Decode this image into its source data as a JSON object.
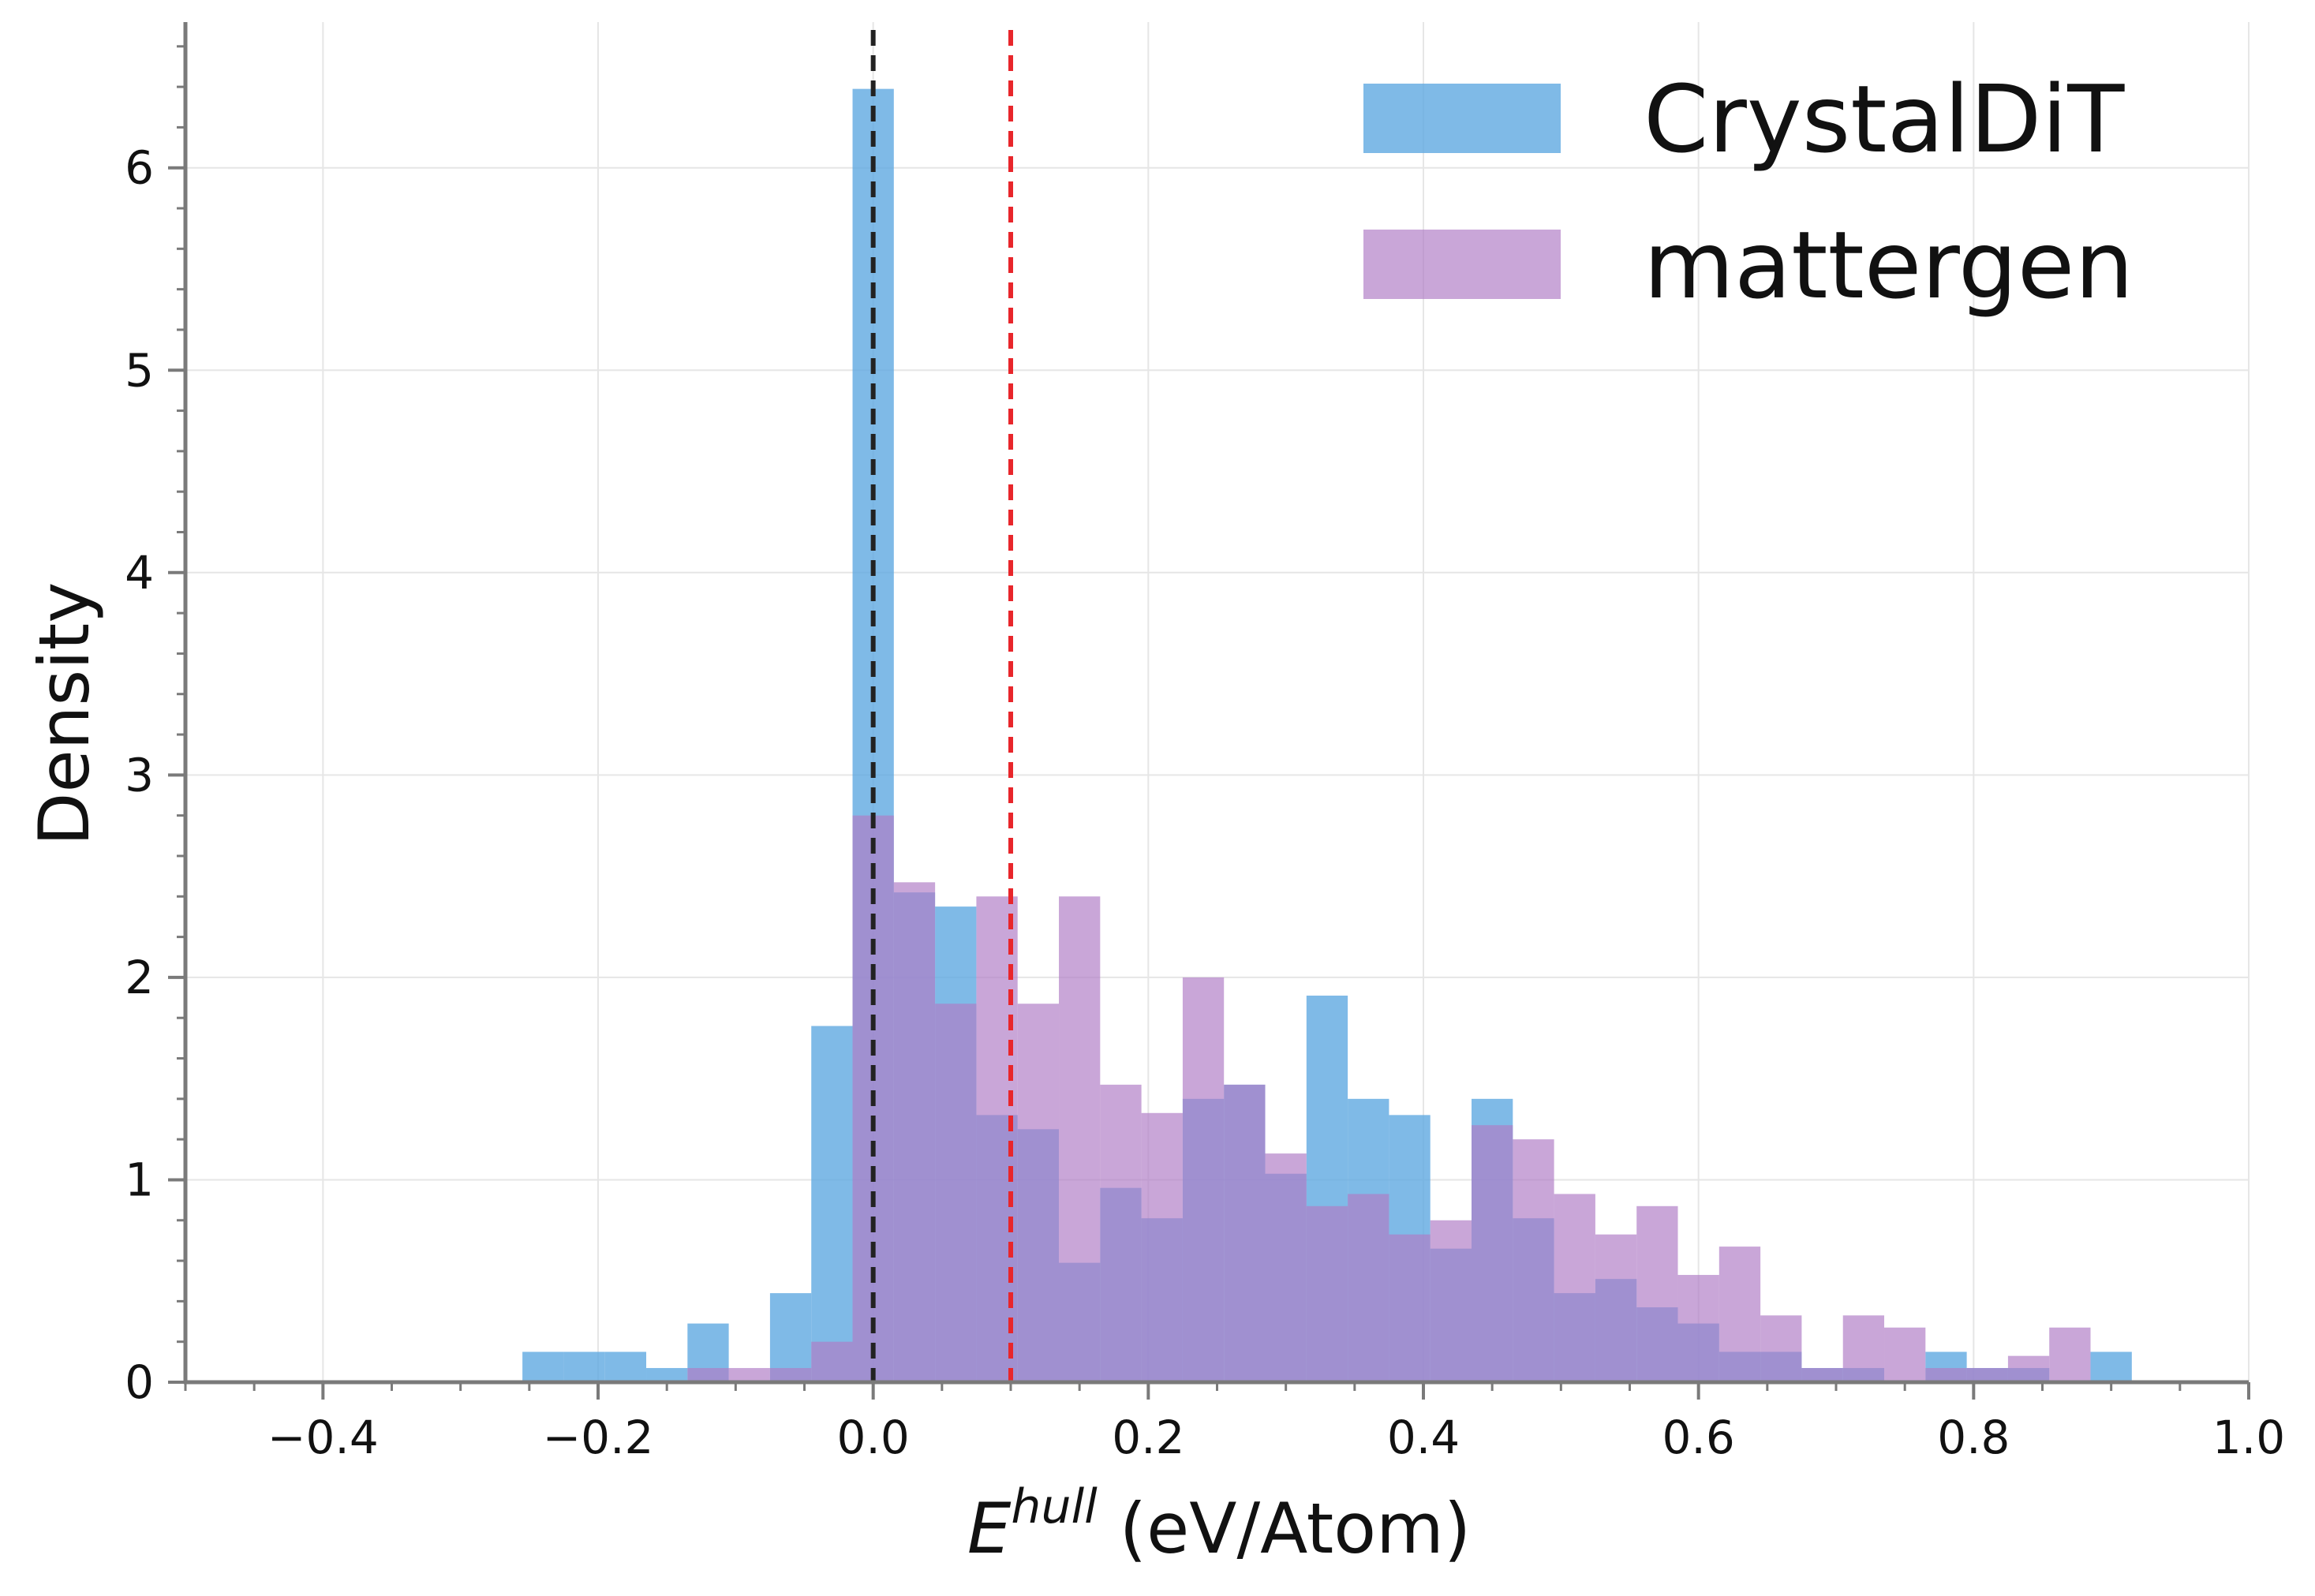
{
  "chart_data": {
    "type": "histogram",
    "xlabel_main": "E",
    "xlabel_sup": "hull",
    "xlabel_unit": " (eV/Atom)",
    "ylabel": "Density",
    "xlim": [
      -0.5,
      1.0
    ],
    "ylim": [
      0,
      6.72
    ],
    "x_ticks": [
      -0.4,
      -0.2,
      0.0,
      0.2,
      0.4,
      0.6,
      0.8,
      1.0
    ],
    "x_tick_labels": [
      "−0.4",
      "−0.2",
      "0.0",
      "0.2",
      "0.4",
      "0.6",
      "0.8",
      "1.0"
    ],
    "y_ticks": [
      0,
      1,
      2,
      3,
      4,
      5,
      6
    ],
    "y_tick_labels": [
      "0",
      "1",
      "2",
      "3",
      "4",
      "5",
      "6"
    ],
    "grid": true,
    "legend_position": "top-right",
    "vlines": [
      {
        "name": "zero-line",
        "x": 0.0,
        "color": "#222222",
        "style": "dashed"
      },
      {
        "name": "threshold-line",
        "x": 0.1,
        "color": "#e8262b",
        "style": "dashed"
      }
    ],
    "series": [
      {
        "name": "CrystalDiT",
        "color": "#5ba7e0",
        "opacity": 0.78,
        "bins": [
          {
            "x0": -0.255,
            "x1": -0.225,
            "y": 0.15
          },
          {
            "x0": -0.225,
            "x1": -0.195,
            "y": 0.15
          },
          {
            "x0": -0.195,
            "x1": -0.165,
            "y": 0.15
          },
          {
            "x0": -0.165,
            "x1": -0.135,
            "y": 0.07
          },
          {
            "x0": -0.135,
            "x1": -0.105,
            "y": 0.29
          },
          {
            "x0": -0.105,
            "x1": -0.075,
            "y": 0.0
          },
          {
            "x0": -0.075,
            "x1": -0.045,
            "y": 0.44
          },
          {
            "x0": -0.045,
            "x1": -0.015,
            "y": 1.76
          },
          {
            "x0": -0.015,
            "x1": 0.015,
            "y": 6.39
          },
          {
            "x0": 0.015,
            "x1": 0.045,
            "y": 2.42
          },
          {
            "x0": 0.045,
            "x1": 0.075,
            "y": 2.35
          },
          {
            "x0": 0.075,
            "x1": 0.105,
            "y": 1.32
          },
          {
            "x0": 0.105,
            "x1": 0.135,
            "y": 1.25
          },
          {
            "x0": 0.135,
            "x1": 0.165,
            "y": 0.59
          },
          {
            "x0": 0.165,
            "x1": 0.195,
            "y": 0.96
          },
          {
            "x0": 0.195,
            "x1": 0.225,
            "y": 0.81
          },
          {
            "x0": 0.225,
            "x1": 0.255,
            "y": 1.4
          },
          {
            "x0": 0.255,
            "x1": 0.285,
            "y": 1.47
          },
          {
            "x0": 0.285,
            "x1": 0.315,
            "y": 1.03
          },
          {
            "x0": 0.315,
            "x1": 0.345,
            "y": 1.91
          },
          {
            "x0": 0.345,
            "x1": 0.375,
            "y": 1.4
          },
          {
            "x0": 0.375,
            "x1": 0.405,
            "y": 1.32
          },
          {
            "x0": 0.405,
            "x1": 0.435,
            "y": 0.66
          },
          {
            "x0": 0.435,
            "x1": 0.465,
            "y": 1.4
          },
          {
            "x0": 0.465,
            "x1": 0.495,
            "y": 0.81
          },
          {
            "x0": 0.495,
            "x1": 0.525,
            "y": 0.44
          },
          {
            "x0": 0.525,
            "x1": 0.555,
            "y": 0.51
          },
          {
            "x0": 0.555,
            "x1": 0.585,
            "y": 0.37
          },
          {
            "x0": 0.585,
            "x1": 0.615,
            "y": 0.29
          },
          {
            "x0": 0.615,
            "x1": 0.645,
            "y": 0.15
          },
          {
            "x0": 0.645,
            "x1": 0.675,
            "y": 0.15
          },
          {
            "x0": 0.675,
            "x1": 0.705,
            "y": 0.07
          },
          {
            "x0": 0.705,
            "x1": 0.735,
            "y": 0.07
          },
          {
            "x0": 0.735,
            "x1": 0.765,
            "y": 0.0
          },
          {
            "x0": 0.765,
            "x1": 0.795,
            "y": 0.15
          },
          {
            "x0": 0.795,
            "x1": 0.825,
            "y": 0.07
          },
          {
            "x0": 0.825,
            "x1": 0.855,
            "y": 0.07
          },
          {
            "x0": 0.855,
            "x1": 0.885,
            "y": 0.0
          },
          {
            "x0": 0.885,
            "x1": 0.915,
            "y": 0.15
          }
        ]
      },
      {
        "name": "mattergen",
        "color": "#b07cc6",
        "opacity": 0.68,
        "bins": [
          {
            "x0": -0.135,
            "x1": -0.105,
            "y": 0.07
          },
          {
            "x0": -0.105,
            "x1": -0.075,
            "y": 0.07
          },
          {
            "x0": -0.075,
            "x1": -0.045,
            "y": 0.07
          },
          {
            "x0": -0.045,
            "x1": -0.015,
            "y": 0.2
          },
          {
            "x0": -0.015,
            "x1": 0.015,
            "y": 2.8
          },
          {
            "x0": 0.015,
            "x1": 0.045,
            "y": 2.47
          },
          {
            "x0": 0.045,
            "x1": 0.075,
            "y": 1.87
          },
          {
            "x0": 0.075,
            "x1": 0.105,
            "y": 2.4
          },
          {
            "x0": 0.105,
            "x1": 0.135,
            "y": 1.87
          },
          {
            "x0": 0.135,
            "x1": 0.165,
            "y": 2.4
          },
          {
            "x0": 0.165,
            "x1": 0.195,
            "y": 1.47
          },
          {
            "x0": 0.195,
            "x1": 0.225,
            "y": 1.33
          },
          {
            "x0": 0.225,
            "x1": 0.255,
            "y": 2.0
          },
          {
            "x0": 0.255,
            "x1": 0.285,
            "y": 1.47
          },
          {
            "x0": 0.285,
            "x1": 0.315,
            "y": 1.13
          },
          {
            "x0": 0.315,
            "x1": 0.345,
            "y": 0.87
          },
          {
            "x0": 0.345,
            "x1": 0.375,
            "y": 0.93
          },
          {
            "x0": 0.375,
            "x1": 0.405,
            "y": 0.73
          },
          {
            "x0": 0.405,
            "x1": 0.435,
            "y": 0.8
          },
          {
            "x0": 0.435,
            "x1": 0.465,
            "y": 1.27
          },
          {
            "x0": 0.465,
            "x1": 0.495,
            "y": 1.2
          },
          {
            "x0": 0.495,
            "x1": 0.525,
            "y": 0.93
          },
          {
            "x0": 0.525,
            "x1": 0.555,
            "y": 0.73
          },
          {
            "x0": 0.555,
            "x1": 0.585,
            "y": 0.87
          },
          {
            "x0": 0.585,
            "x1": 0.615,
            "y": 0.53
          },
          {
            "x0": 0.615,
            "x1": 0.645,
            "y": 0.67
          },
          {
            "x0": 0.645,
            "x1": 0.675,
            "y": 0.33
          },
          {
            "x0": 0.675,
            "x1": 0.705,
            "y": 0.07
          },
          {
            "x0": 0.705,
            "x1": 0.735,
            "y": 0.33
          },
          {
            "x0": 0.735,
            "x1": 0.765,
            "y": 0.27
          },
          {
            "x0": 0.765,
            "x1": 0.795,
            "y": 0.07
          },
          {
            "x0": 0.795,
            "x1": 0.825,
            "y": 0.07
          },
          {
            "x0": 0.825,
            "x1": 0.855,
            "y": 0.13
          },
          {
            "x0": 0.855,
            "x1": 0.885,
            "y": 0.27
          }
        ]
      }
    ]
  }
}
